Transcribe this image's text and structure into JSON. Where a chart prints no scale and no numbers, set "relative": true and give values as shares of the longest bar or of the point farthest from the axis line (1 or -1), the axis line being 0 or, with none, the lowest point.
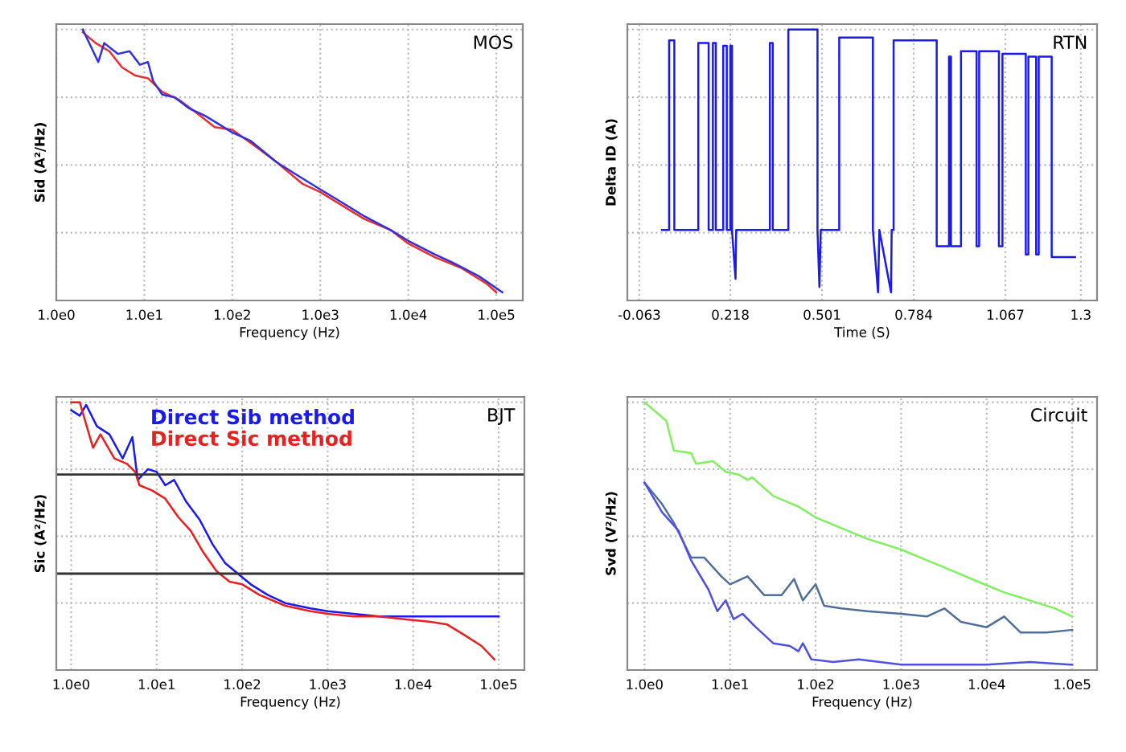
{
  "chart_data": [
    {
      "type": "line",
      "title": "MOS",
      "xlabel": "Frequency (Hz)",
      "ylabel": "Sid (A²/Hz)",
      "log": "x",
      "grid": true,
      "relative": true,
      "xlim": [
        1,
        200000
      ],
      "xticks": [
        {
          "value": 1,
          "label": "1.0e0"
        },
        {
          "value": 10,
          "label": "1.0e1"
        },
        {
          "value": 100,
          "label": "1.0e2"
        },
        {
          "value": 1000,
          "label": "1.0e3"
        },
        {
          "value": 10000,
          "label": "1.0e4"
        },
        {
          "value": 100000,
          "label": "1.0e5"
        }
      ],
      "series": [
        {
          "color": "#e83030",
          "x": [
            2,
            2.8,
            4,
            5.6,
            7.9,
            11,
            16,
            25,
            40,
            63,
            100,
            200,
            320,
            630,
            1000,
            2000,
            3200,
            6300,
            10000,
            20000,
            40000,
            79000,
            100000
          ],
          "values": [
            0.99,
            0.95,
            0.92,
            0.86,
            0.83,
            0.82,
            0.77,
            0.74,
            0.69,
            0.64,
            0.63,
            0.56,
            0.51,
            0.43,
            0.4,
            0.34,
            0.3,
            0.26,
            0.21,
            0.16,
            0.12,
            0.06,
            0.03
          ]
        },
        {
          "color": "#3030e0",
          "x": [
            2,
            3,
            3.5,
            5,
            6.8,
            8.9,
            11,
            12.6,
            16,
            22,
            32,
            50,
            100,
            160,
            320,
            630,
            1000,
            1600,
            3200,
            6300,
            10000,
            20000,
            32000,
            63000,
            117000
          ],
          "values": [
            1.0,
            0.88,
            0.95,
            0.91,
            0.92,
            0.87,
            0.88,
            0.81,
            0.76,
            0.75,
            0.71,
            0.68,
            0.62,
            0.59,
            0.51,
            0.45,
            0.41,
            0.37,
            0.31,
            0.26,
            0.22,
            0.17,
            0.14,
            0.09,
            0.03
          ]
        }
      ]
    },
    {
      "type": "line",
      "title": "RTN",
      "xlabel": "Time (S)",
      "ylabel": "Delta ID (A)",
      "grid": true,
      "relative": true,
      "xlim": [
        -0.1,
        1.35
      ],
      "xticks": [
        -0.063,
        0.218,
        0.501,
        0.784,
        1.067,
        1.3
      ],
      "series": [
        {
          "color": "#1a1aee",
          "x": [
            0.007,
            0.029,
            0.029,
            0.045,
            0.045,
            0.119,
            0.119,
            0.146,
            0.151,
            0.151,
            0.164,
            0.164,
            0.173,
            0.173,
            0.196,
            0.196,
            0.207,
            0.207,
            0.218,
            0.218,
            0.223,
            0.223,
            0.234,
            0.236,
            0.34,
            0.34,
            0.349,
            0.349,
            0.397,
            0.397,
            0.487,
            0.487,
            0.493,
            0.497,
            0.554,
            0.554,
            0.658,
            0.658,
            0.674,
            0.678,
            0.714,
            0.716,
            0.722,
            0.722,
            0.855,
            0.855,
            0.893,
            0.893,
            0.899,
            0.899,
            0.93,
            0.93,
            0.978,
            0.978,
            0.986,
            0.986,
            1.047,
            1.047,
            1.058,
            1.058,
            1.13,
            1.13,
            1.138,
            1.138,
            1.162,
            1.162,
            1.17,
            1.17,
            1.21,
            1.21,
            1.282
          ],
          "values": [
            0.26,
            0.26,
            0.96,
            0.96,
            0.26,
            0.26,
            0.95,
            0.95,
            0.95,
            0.26,
            0.26,
            0.95,
            0.95,
            0.26,
            0.26,
            0.94,
            0.94,
            0.26,
            0.26,
            0.94,
            0.94,
            0.26,
            0.08,
            0.26,
            0.26,
            0.95,
            0.95,
            0.26,
            0.26,
            1.0,
            1.0,
            0.26,
            0.05,
            0.26,
            0.26,
            0.97,
            0.97,
            0.26,
            0.03,
            0.26,
            0.03,
            0.26,
            0.26,
            0.96,
            0.96,
            0.2,
            0.2,
            0.9,
            0.9,
            0.2,
            0.2,
            0.92,
            0.92,
            0.2,
            0.2,
            0.92,
            0.92,
            0.2,
            0.2,
            0.91,
            0.91,
            0.17,
            0.17,
            0.9,
            0.9,
            0.17,
            0.17,
            0.9,
            0.9,
            0.16,
            0.16
          ]
        }
      ]
    },
    {
      "type": "line",
      "title": "BJT",
      "xlabel": "Frequency (Hz)",
      "ylabel": "Sic (A²/Hz)",
      "log": "x",
      "grid": true,
      "relative": true,
      "legend": "top",
      "xlim": [
        0.67,
        200000
      ],
      "xticks": [
        {
          "value": 1,
          "label": "1.0e0"
        },
        {
          "value": 10,
          "label": "1.0e1"
        },
        {
          "value": 100,
          "label": "1.0e2"
        },
        {
          "value": 1000,
          "label": "1.0e3"
        },
        {
          "value": 10000,
          "label": "1.0e4"
        },
        {
          "value": 100000,
          "label": "1.0e5"
        }
      ],
      "ref_lines": [
        {
          "axis": "y",
          "value": 0.73,
          "color": "#333333"
        },
        {
          "axis": "y",
          "value": 0.36,
          "color": "#333333"
        }
      ],
      "series": [
        {
          "name": "Direct Sib method",
          "color": "#1a1aee",
          "x": [
            1,
            1.26,
            1.5,
            2,
            2.8,
            4,
            5.2,
            6,
            7.9,
            10,
            12.6,
            16,
            22,
            32,
            45,
            63,
            89,
            126,
            200,
            320,
            630,
            1000,
            2000,
            4000,
            7900,
            16000,
            32000,
            63000,
            100000
          ],
          "values": [
            0.97,
            0.95,
            0.99,
            0.91,
            0.88,
            0.79,
            0.87,
            0.71,
            0.75,
            0.74,
            0.69,
            0.71,
            0.63,
            0.56,
            0.47,
            0.4,
            0.36,
            0.32,
            0.28,
            0.25,
            0.23,
            0.22,
            0.21,
            0.2,
            0.2,
            0.2,
            0.2,
            0.2,
            0.2
          ]
        },
        {
          "name": "Direct Sic method",
          "color": "#e82020",
          "x": [
            1,
            1.26,
            1.8,
            2.2,
            3.2,
            4.5,
            5.6,
            6.3,
            8.9,
            12.6,
            18,
            25,
            35,
            50,
            71,
            100,
            160,
            320,
            630,
            1000,
            2000,
            4000,
            7900,
            16000,
            25000,
            40000,
            63000,
            89000
          ],
          "values": [
            1.0,
            1.0,
            0.83,
            0.88,
            0.79,
            0.77,
            0.74,
            0.69,
            0.67,
            0.64,
            0.57,
            0.52,
            0.44,
            0.37,
            0.33,
            0.32,
            0.28,
            0.24,
            0.22,
            0.21,
            0.2,
            0.2,
            0.19,
            0.18,
            0.17,
            0.13,
            0.09,
            0.04
          ]
        }
      ]
    },
    {
      "type": "line",
      "title": "Circuit",
      "xlabel": "Frequency (Hz)",
      "ylabel": "Svd (V²/Hz)",
      "log": "x",
      "grid": true,
      "relative": true,
      "xlim": [
        0.63,
        195000
      ],
      "xticks": [
        {
          "value": 1,
          "label": "1.0e0"
        },
        {
          "value": 10,
          "label": "1.0e1"
        },
        {
          "value": 100,
          "label": "1.0e2"
        },
        {
          "value": 1000,
          "label": "1.0e3"
        },
        {
          "value": 10000,
          "label": "1.0e4"
        },
        {
          "value": 100000,
          "label": "1.0e5"
        }
      ],
      "series": [
        {
          "color": "#80f060",
          "x": [
            1,
            1.8,
            2.2,
            3.5,
            4,
            6.3,
            8.9,
            12.6,
            16,
            18,
            32,
            63,
            100,
            200,
            400,
            1000,
            2000,
            4000,
            7900,
            16000,
            32000,
            63000,
            100000
          ],
          "values": [
            1.0,
            0.93,
            0.82,
            0.81,
            0.77,
            0.78,
            0.74,
            0.73,
            0.71,
            0.72,
            0.65,
            0.61,
            0.57,
            0.53,
            0.49,
            0.45,
            0.41,
            0.37,
            0.33,
            0.29,
            0.26,
            0.23,
            0.2
          ]
        },
        {
          "color": "#4f6f99",
          "x": [
            1,
            1.6,
            2.2,
            3.5,
            5,
            7.9,
            10,
            16,
            25,
            40,
            56,
            71,
            100,
            126,
            200,
            400,
            1000,
            2000,
            3200,
            5000,
            10000,
            16000,
            25000,
            50000,
            100000
          ],
          "values": [
            0.7,
            0.62,
            0.55,
            0.42,
            0.42,
            0.35,
            0.32,
            0.35,
            0.28,
            0.28,
            0.34,
            0.26,
            0.32,
            0.24,
            0.23,
            0.22,
            0.21,
            0.2,
            0.23,
            0.18,
            0.16,
            0.2,
            0.14,
            0.14,
            0.15
          ]
        },
        {
          "color": "#5050e0",
          "x": [
            1,
            1.6,
            2.5,
            3.5,
            5.6,
            7.1,
            8.9,
            11,
            14,
            20,
            32,
            50,
            63,
            71,
            89,
            160,
            320,
            1000,
            3200,
            10000,
            32000,
            100000
          ],
          "values": [
            0.7,
            0.59,
            0.52,
            0.41,
            0.3,
            0.22,
            0.26,
            0.19,
            0.21,
            0.16,
            0.1,
            0.09,
            0.07,
            0.1,
            0.04,
            0.03,
            0.04,
            0.02,
            0.02,
            0.02,
            0.03,
            0.02
          ]
        }
      ]
    }
  ]
}
